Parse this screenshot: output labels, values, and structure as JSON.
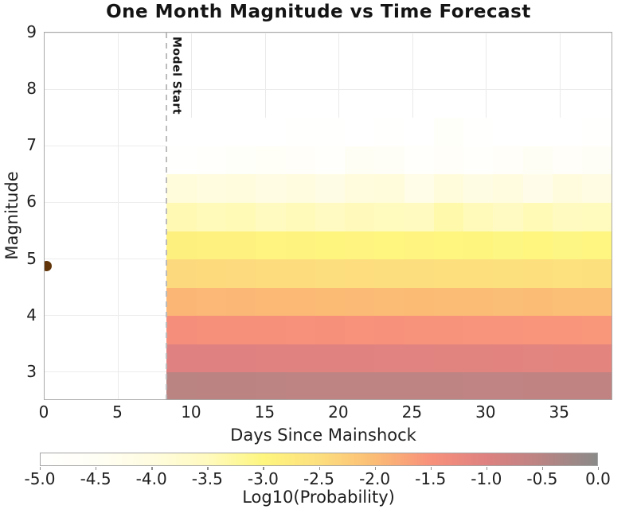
{
  "title": "One Month Magnitude vs Time Forecast",
  "x_axis": {
    "label": "Days Since Mainshock",
    "tick_values": [
      0,
      5,
      10,
      15,
      20,
      25,
      30,
      35
    ]
  },
  "y_axis": {
    "label": "Magnitude",
    "tick_values": [
      3,
      4,
      5,
      6,
      7,
      8,
      9
    ]
  },
  "model_start": {
    "label": "Model Start",
    "day": 8.3
  },
  "mainshock": {
    "day": 0,
    "magnitude": 4.87,
    "marker_color": "#613509"
  },
  "colorbar": {
    "label": "Log10(Probability)",
    "tick_labels": [
      "-5.0",
      "-4.5",
      "-4.0",
      "-3.5",
      "-3.0",
      "-2.5",
      "-2.0",
      "-1.5",
      "-1.0",
      "-0.5",
      "0.0"
    ],
    "min": -5.0,
    "max": 0.0
  },
  "chart_data": {
    "type": "heatmap",
    "title": "One Month Magnitude vs Time Forecast",
    "xlabel": "Days Since Mainshock",
    "ylabel": "Magnitude",
    "xlim": [
      0,
      38.5
    ],
    "ylim": [
      2.52,
      9
    ],
    "grid": true,
    "legend_position": "bottom-colorbar",
    "value_name": "Log10(Probability)",
    "value_range": [
      -5.0,
      0.0
    ],
    "model_start_day": 8.3,
    "mainshock_point": {
      "day": 0,
      "magnitude": 4.87
    },
    "day_bin_edges": [
      8.3,
      10.31,
      12.33,
      14.34,
      16.36,
      18.37,
      20.39,
      22.4,
      24.42,
      26.43,
      28.45,
      30.46,
      32.48,
      34.49,
      36.51,
      38.52
    ],
    "mag_bin_edges": [
      2.5,
      3.0,
      3.5,
      4.0,
      4.5,
      5.0,
      5.5,
      6.0,
      6.5,
      7.0,
      7.5
    ],
    "rows_ascending_magnitude": [
      {
        "mag_range": [
          2.5,
          3.0
        ],
        "values": [
          -0.52,
          -0.53,
          -0.53,
          -0.54,
          -0.55,
          -0.55,
          -0.56,
          -0.56,
          -0.57,
          -0.57,
          -0.58,
          -0.58,
          -0.59,
          -0.6,
          -0.61
        ]
      },
      {
        "mag_range": [
          3.0,
          3.5
        ],
        "values": [
          -1.0,
          -1.01,
          -1.01,
          -1.02,
          -1.03,
          -1.03,
          -1.04,
          -1.05,
          -1.05,
          -1.06,
          -1.06,
          -1.07,
          -1.08,
          -1.09,
          -1.1
        ]
      },
      {
        "mag_range": [
          3.5,
          4.0
        ],
        "values": [
          -1.45,
          -1.46,
          -1.46,
          -1.48,
          -1.49,
          -1.48,
          -1.51,
          -1.5,
          -1.52,
          -1.52,
          -1.54,
          -1.53,
          -1.55,
          -1.55,
          -1.57
        ]
      },
      {
        "mag_range": [
          4.0,
          4.5
        ],
        "values": [
          -1.93,
          -1.95,
          -1.94,
          -1.97,
          -1.96,
          -1.99,
          -1.98,
          -2.0,
          -1.99,
          -2.02,
          -2.01,
          -2.03,
          -2.02,
          -2.05,
          -2.04
        ]
      },
      {
        "mag_range": [
          4.5,
          5.0
        ],
        "values": [
          -2.42,
          -2.44,
          -2.43,
          -2.46,
          -2.45,
          -2.48,
          -2.47,
          -2.49,
          -2.48,
          -2.51,
          -2.5,
          -2.52,
          -2.51,
          -2.54,
          -2.53
        ]
      },
      {
        "mag_range": [
          5.0,
          5.5
        ],
        "values": [
          -2.87,
          -2.9,
          -2.89,
          -2.96,
          -2.93,
          -2.97,
          -2.95,
          -3.0,
          -2.96,
          -3.0,
          -2.98,
          -3.02,
          -2.99,
          -3.04,
          -3.01
        ]
      },
      {
        "mag_range": [
          5.5,
          6.0
        ],
        "values": [
          -3.42,
          -3.47,
          -3.44,
          -3.52,
          -3.46,
          -3.55,
          -3.48,
          -3.5,
          -3.52,
          -3.36,
          -3.47,
          -3.56,
          -3.44,
          -3.52,
          -3.49
        ]
      },
      {
        "mag_range": [
          6.0,
          6.5
        ],
        "values": [
          -3.92,
          -4.0,
          -3.95,
          -4.08,
          -3.98,
          -4.12,
          -3.96,
          -3.93,
          -4.18,
          -3.94,
          -4.1,
          -4.0,
          -4.25,
          -3.97,
          -4.08
        ]
      },
      {
        "mag_range": [
          6.5,
          7.0
        ],
        "values": [
          -4.95,
          -4.88,
          -4.78,
          -4.62,
          -4.7,
          -4.85,
          -4.55,
          -4.58,
          -4.8,
          -4.7,
          -4.88,
          -4.66,
          -4.52,
          -4.74,
          -4.6
        ]
      },
      {
        "mag_range": [
          7.0,
          7.5
        ],
        "values": [
          -5.0,
          -5.0,
          -4.98,
          -5.0,
          -4.95,
          -4.9,
          -5.0,
          -4.97,
          -5.0,
          -4.75,
          -4.95,
          -5.0,
          -4.98,
          -5.0,
          -4.96
        ]
      }
    ],
    "colormap_stops": [
      {
        "t": 0.0,
        "color": "#FFFFFF"
      },
      {
        "t": 0.1,
        "color": "#FFFEF4"
      },
      {
        "t": 0.2,
        "color": "#FFFCE0"
      },
      {
        "t": 0.3,
        "color": "#FFFABE"
      },
      {
        "t": 0.4,
        "color": "#FEF67F"
      },
      {
        "t": 0.5,
        "color": "#FDDF7E"
      },
      {
        "t": 0.6,
        "color": "#FBBC75"
      },
      {
        "t": 0.7,
        "color": "#F8917B"
      },
      {
        "t": 0.8,
        "color": "#DE8180"
      },
      {
        "t": 0.9,
        "color": "#B98483"
      },
      {
        "t": 1.0,
        "color": "#8A8A89"
      }
    ]
  }
}
